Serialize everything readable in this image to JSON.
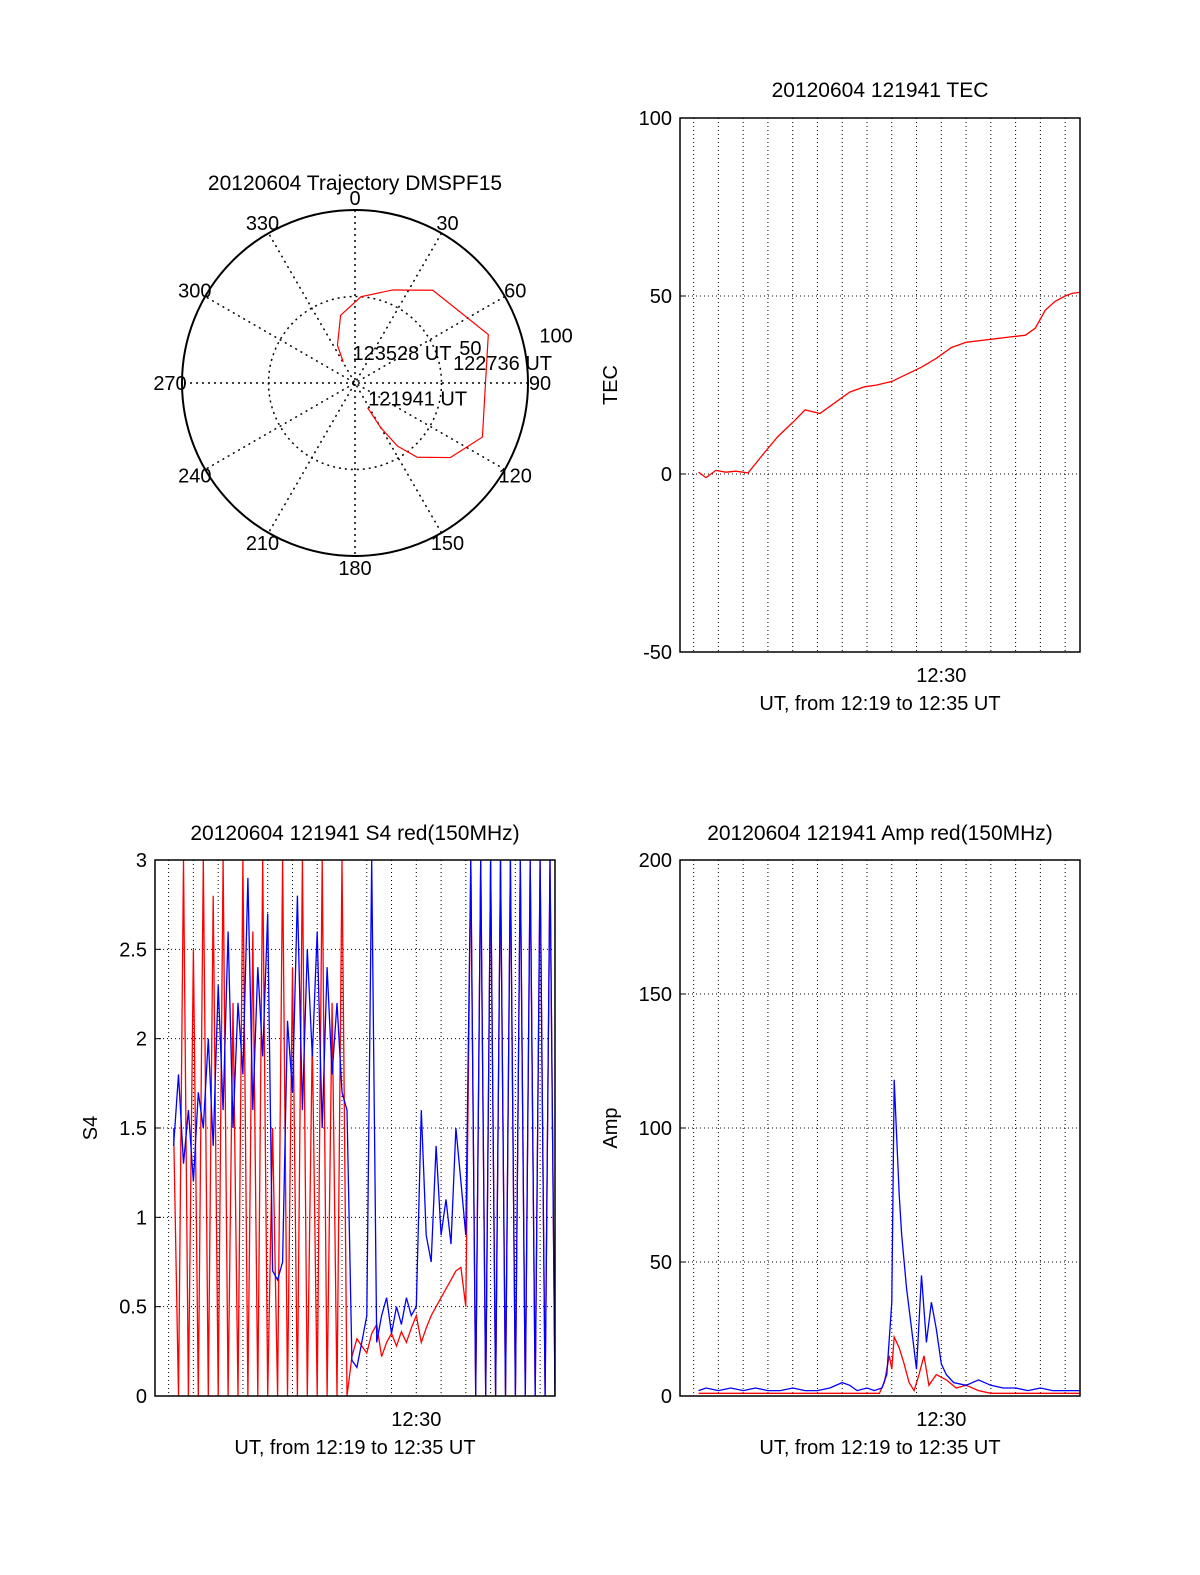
{
  "chart_data": [
    {
      "type": "polar",
      "title": "20120604 Trajectory DMSPF15",
      "angle_labels": [
        "0",
        "30",
        "60",
        "90",
        "120",
        "150",
        "180",
        "210",
        "240",
        "270",
        "300",
        "330"
      ],
      "radius_labels": [
        "50",
        "100"
      ],
      "rlim": [
        0,
        100
      ],
      "grid": true,
      "series": [
        {
          "color": "#ff0000",
          "points": [
            {
              "az": 153,
              "el": 16
            },
            {
              "az": 150,
              "el": 30
            },
            {
              "az": 146,
              "el": 44
            },
            {
              "az": 140,
              "el": 56
            },
            {
              "az": 128,
              "el": 70
            },
            {
              "az": 113,
              "el": 80
            },
            {
              "az": 70,
              "el": 82
            },
            {
              "az": 40,
              "el": 70
            },
            {
              "az": 22,
              "el": 58
            },
            {
              "az": 4,
              "el": 50
            },
            {
              "az": 348,
              "el": 40
            },
            {
              "az": 335,
              "el": 24
            },
            {
              "az": 331,
              "el": 14
            }
          ]
        }
      ],
      "annotations": [
        {
          "text": "121941 UT",
          "az": 152,
          "el": 10
        },
        {
          "text": "122736 UT",
          "az": 78,
          "el": 55
        },
        {
          "text": "123528 UT",
          "az": 346,
          "el": 18
        }
      ]
    },
    {
      "type": "line",
      "title": "20120604 121941 TEC",
      "xlabel": "UT, from 12:19 to 12:35 UT",
      "ylabel": "TEC",
      "x_tick_labels": [
        {
          "x": 30.0,
          "label": "12:30"
        }
      ],
      "xlim": [
        19.45,
        35.6
      ],
      "ylim": [
        -50,
        100
      ],
      "yticks": [
        -50,
        0,
        50,
        100
      ],
      "grid": true,
      "series": [
        {
          "color": "#ff0000",
          "x": [
            20.2,
            20.5,
            20.9,
            21.3,
            21.7,
            22.2,
            22.8,
            23.4,
            24.0,
            24.5,
            25.1,
            25.7,
            26.3,
            26.9,
            27.4,
            28.0,
            28.6,
            29.2,
            29.8,
            30.4,
            31.0,
            31.6,
            32.2,
            32.8,
            33.4,
            33.8,
            34.2,
            34.6,
            35.0,
            35.3,
            35.6
          ],
          "y": [
            0.5,
            -1.0,
            1.0,
            0.5,
            0.8,
            0.3,
            5.5,
            10.5,
            14.5,
            18.0,
            17.0,
            20.0,
            23.0,
            24.5,
            25.0,
            26.0,
            28.0,
            30.0,
            32.5,
            35.5,
            37.0,
            37.5,
            38.0,
            38.5,
            39.0,
            41.0,
            46.0,
            48.5,
            50.0,
            50.8,
            51.0
          ]
        }
      ]
    },
    {
      "type": "line",
      "title": "20120604 121941 S4 red(150MHz)",
      "xlabel": "UT, from 12:19 to 12:35 UT",
      "ylabel": "S4",
      "x_tick_labels": [
        {
          "x": 30.0,
          "label": "12:30"
        }
      ],
      "xlim": [
        19.45,
        35.6
      ],
      "ylim": [
        0,
        3
      ],
      "yticks": [
        0,
        0.5,
        1,
        1.5,
        2,
        2.5,
        3
      ],
      "grid": true,
      "series": [
        {
          "color": "#ff0000",
          "x": [
            20.2,
            20.4,
            20.6,
            20.8,
            21.0,
            21.2,
            21.4,
            21.6,
            21.8,
            22.0,
            22.2,
            22.4,
            22.6,
            22.8,
            23.0,
            23.2,
            23.4,
            23.6,
            23.8,
            24.0,
            24.2,
            24.4,
            24.6,
            24.8,
            25.0,
            25.2,
            25.4,
            25.6,
            25.8,
            26.0,
            26.2,
            26.4,
            26.6,
            26.8,
            27.0,
            27.2,
            27.4,
            27.6,
            27.8,
            28.0,
            28.2,
            28.4,
            28.6,
            28.8,
            29.0,
            29.2,
            29.4,
            29.6,
            29.8,
            30.0,
            30.2,
            30.4,
            30.6,
            30.8,
            31.0,
            31.2,
            31.4,
            31.6,
            31.8,
            32.0,
            32.2,
            32.4,
            32.6,
            32.8,
            33.0,
            33.2,
            33.4,
            33.6,
            33.8,
            34.0,
            34.2,
            34.4,
            34.6,
            34.8,
            35.0,
            35.2,
            35.4,
            35.6
          ],
          "y": [
            1.5,
            0.0,
            3.0,
            0.0,
            2.5,
            0.0,
            3.0,
            0.0,
            2.8,
            0.0,
            3.0,
            0.0,
            2.2,
            0.0,
            3.0,
            0.0,
            2.6,
            0.0,
            3.0,
            0.0,
            1.5,
            0.0,
            3.0,
            0.0,
            2.4,
            0.0,
            3.0,
            0.0,
            2.0,
            0.0,
            3.0,
            0.0,
            2.2,
            0.0,
            3.0,
            0.0,
            0.22,
            0.32,
            0.28,
            0.24,
            0.35,
            0.4,
            0.22,
            0.3,
            0.35,
            0.28,
            0.36,
            0.3,
            0.38,
            0.45,
            0.3,
            0.38,
            0.45,
            0.5,
            0.55,
            0.6,
            0.65,
            0.7,
            0.72,
            0.5,
            3.0,
            0.0,
            3.0,
            0.0,
            3.0,
            0.0,
            3.0,
            0.0,
            3.0,
            0.0,
            3.0,
            0.0,
            3.0,
            0.0,
            3.0,
            0.0,
            3.0,
            0.0
          ]
        },
        {
          "color": "#0000ff",
          "x": [
            20.2,
            20.4,
            20.6,
            20.8,
            21.0,
            21.2,
            21.4,
            21.6,
            21.8,
            22.0,
            22.2,
            22.4,
            22.6,
            22.8,
            23.0,
            23.2,
            23.4,
            23.6,
            23.8,
            24.0,
            24.2,
            24.4,
            24.6,
            24.8,
            25.0,
            25.2,
            25.4,
            25.6,
            25.8,
            26.0,
            26.2,
            26.4,
            26.6,
            26.8,
            27.0,
            27.2,
            27.4,
            27.6,
            27.8,
            28.0,
            28.2,
            28.4,
            28.6,
            28.8,
            29.0,
            29.2,
            29.4,
            29.6,
            29.8,
            30.0,
            30.2,
            30.4,
            30.6,
            30.8,
            31.0,
            31.2,
            31.4,
            31.6,
            31.8,
            32.0,
            32.2,
            32.4,
            32.6,
            32.8,
            33.0,
            33.2,
            33.4,
            33.6,
            33.8,
            34.0,
            34.2,
            34.4,
            34.6,
            34.8,
            35.0,
            35.2,
            35.4,
            35.6
          ],
          "y": [
            1.4,
            1.8,
            1.3,
            1.6,
            1.2,
            1.7,
            1.5,
            2.0,
            1.4,
            2.3,
            1.6,
            2.6,
            1.5,
            2.2,
            1.8,
            2.9,
            1.6,
            2.4,
            1.9,
            2.7,
            0.7,
            0.65,
            0.75,
            2.1,
            1.7,
            2.8,
            1.6,
            2.5,
            1.9,
            2.6,
            1.5,
            2.4,
            1.8,
            2.2,
            1.7,
            1.6,
            0.2,
            0.16,
            0.3,
            0.45,
            3.0,
            0.3,
            0.45,
            0.55,
            0.35,
            0.5,
            0.4,
            0.55,
            0.45,
            0.5,
            1.6,
            0.9,
            0.75,
            1.4,
            0.9,
            1.1,
            0.85,
            1.5,
            1.2,
            0.9,
            3.0,
            0.0,
            3.0,
            0.0,
            3.0,
            0.0,
            3.0,
            0.0,
            3.0,
            0.0,
            3.0,
            0.0,
            3.0,
            0.0,
            3.0,
            0.0,
            3.0,
            0.0
          ]
        }
      ]
    },
    {
      "type": "line",
      "title": "20120604 121941 Amp red(150MHz)",
      "xlabel": "UT, from 12:19 to 12:35 UT",
      "ylabel": "Amp",
      "x_tick_labels": [
        {
          "x": 30.0,
          "label": "12:30"
        }
      ],
      "xlim": [
        19.45,
        35.6
      ],
      "ylim": [
        0,
        200
      ],
      "yticks": [
        0,
        50,
        100,
        150,
        200
      ],
      "grid": true,
      "series": [
        {
          "color": "#ff0000",
          "x": [
            20.2,
            21.0,
            22.0,
            23.0,
            24.0,
            25.0,
            26.0,
            27.0,
            27.5,
            27.7,
            27.9,
            28.0,
            28.1,
            28.3,
            28.5,
            28.7,
            28.9,
            29.1,
            29.3,
            29.5,
            29.8,
            30.2,
            30.6,
            31.0,
            31.5,
            32.0,
            33.0,
            34.0,
            35.0,
            35.6
          ],
          "y": [
            1,
            1,
            1,
            1,
            1,
            1,
            1,
            1,
            1,
            5,
            15,
            10,
            22,
            18,
            12,
            5,
            2,
            8,
            15,
            4,
            8,
            6,
            3,
            4,
            2,
            1,
            1,
            1,
            1,
            1
          ]
        },
        {
          "color": "#0000ff",
          "x": [
            20.2,
            20.5,
            21.0,
            21.5,
            22.0,
            22.5,
            23.0,
            23.5,
            24.0,
            24.5,
            25.0,
            25.5,
            26.0,
            26.3,
            26.6,
            27.0,
            27.3,
            27.6,
            27.8,
            28.0,
            28.1,
            28.3,
            28.4,
            28.6,
            28.8,
            29.0,
            29.2,
            29.4,
            29.6,
            29.8,
            30.0,
            30.2,
            30.5,
            31.0,
            31.5,
            32.0,
            32.5,
            33.0,
            33.5,
            34.0,
            34.5,
            35.0,
            35.6
          ],
          "y": [
            2,
            3,
            2,
            3,
            2,
            3,
            2,
            2,
            3,
            2,
            2,
            3,
            5,
            4,
            2,
            3,
            2,
            3,
            8,
            35,
            118,
            75,
            60,
            40,
            25,
            10,
            45,
            20,
            35,
            25,
            12,
            8,
            5,
            4,
            6,
            4,
            3,
            3,
            2,
            3,
            2,
            2,
            2
          ]
        }
      ]
    }
  ]
}
